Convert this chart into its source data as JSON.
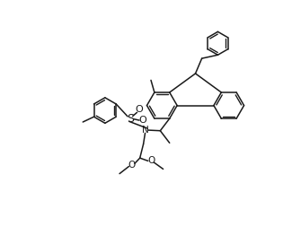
{
  "bg_color": "#ffffff",
  "line_color": "#1a1a1a",
  "lw": 1.1,
  "figsize": [
    3.25,
    2.72
  ],
  "dpi": 100,
  "xlim": [
    0,
    10
  ],
  "ylim": [
    0,
    8.36
  ]
}
